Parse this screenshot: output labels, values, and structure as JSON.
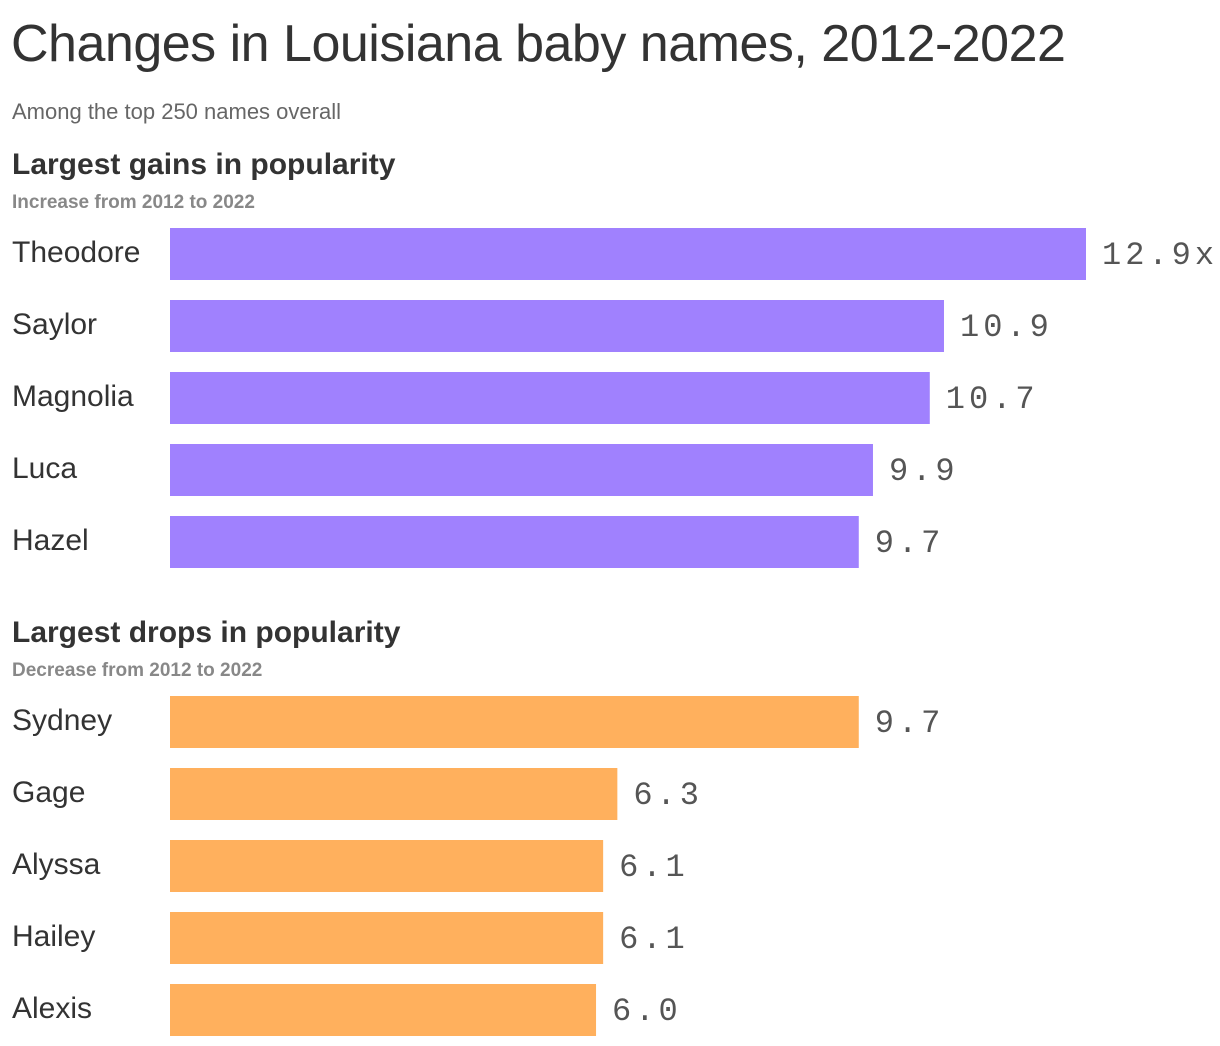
{
  "title": "Changes in Louisiana baby names, 2012-2022",
  "subtitle": "Among the top 250 names overall",
  "colors": {
    "gains": "#a081fe",
    "drops": "#ffb05d",
    "text": "#333333",
    "value_text": "#555555"
  },
  "chart_data": [
    {
      "type": "bar",
      "orientation": "horizontal",
      "title": "Largest gains in popularity",
      "subtitle": "Increase from 2012 to 2022",
      "categories": [
        "Theodore",
        "Saylor",
        "Magnolia",
        "Luca",
        "Hazel"
      ],
      "values": [
        12.9,
        10.9,
        10.7,
        9.9,
        9.7
      ],
      "value_labels": [
        "12.9x",
        "10.9",
        "10.7",
        "9.9",
        "9.7"
      ],
      "xlim": [
        0,
        12.9
      ],
      "grid": false
    },
    {
      "type": "bar",
      "orientation": "horizontal",
      "title": "Largest drops in popularity",
      "subtitle": "Decrease from 2012 to 2022",
      "categories": [
        "Sydney",
        "Gage",
        "Alyssa",
        "Hailey",
        "Alexis"
      ],
      "values": [
        9.7,
        6.3,
        6.1,
        6.1,
        6.0
      ],
      "value_labels": [
        "9.7",
        "6.3",
        "6.1",
        "6.1",
        "6.0"
      ],
      "xlim": [
        0,
        12.9
      ],
      "grid": false
    }
  ]
}
